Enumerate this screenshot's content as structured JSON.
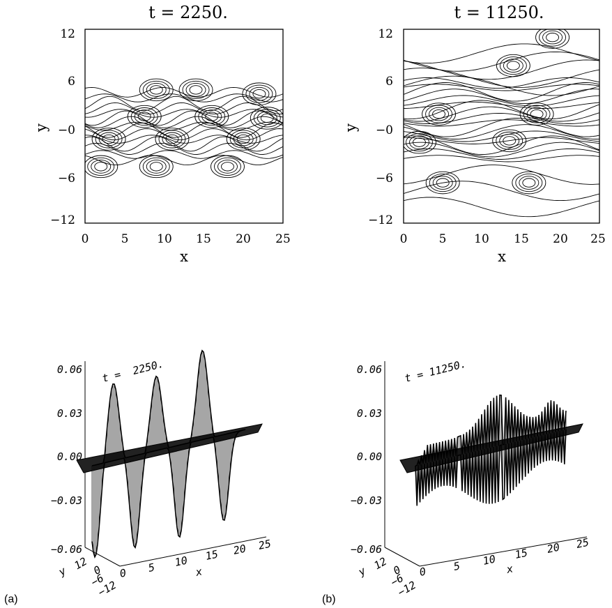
{
  "figure": {
    "label_a": "(a)",
    "label_b": "(b)"
  },
  "chart_data": [
    {
      "type": "contour",
      "title": "t =  2250.",
      "xlabel": "x",
      "ylabel": "y",
      "xlim": [
        0,
        25
      ],
      "ylim": [
        -12,
        12
      ],
      "xticks": [
        "0",
        "5",
        "10",
        "15",
        "20",
        "25"
      ],
      "yticks": [
        "12",
        "6",
        "−0",
        "−6",
        "−12"
      ],
      "ytick_values": [
        12,
        6,
        0,
        -6,
        -12
      ],
      "xtick_values": [
        0,
        5,
        10,
        15,
        20,
        25
      ],
      "peaks": [
        {
          "x": 7.5,
          "y": 1.2
        },
        {
          "x": 16,
          "y": 1.2
        },
        {
          "x": 23,
          "y": 1.0
        },
        {
          "x": 3,
          "y": -1.6
        },
        {
          "x": 11,
          "y": -1.6
        },
        {
          "x": 20,
          "y": -1.6
        },
        {
          "x": 2,
          "y": -5
        },
        {
          "x": 9,
          "y": -5
        },
        {
          "x": 18,
          "y": -5
        },
        {
          "x": 9,
          "y": 4.5
        },
        {
          "x": 14,
          "y": 4.5
        },
        {
          "x": 22,
          "y": 4
        }
      ]
    },
    {
      "type": "contour",
      "title": "t = 11250.",
      "xlabel": "x",
      "ylabel": "y",
      "xlim": [
        0,
        25
      ],
      "ylim": [
        -12,
        12
      ],
      "xticks": [
        "0",
        "5",
        "10",
        "15",
        "20",
        "25"
      ],
      "yticks": [
        "12",
        "6",
        "−0",
        "−6",
        "−12"
      ],
      "ytick_values": [
        12,
        6,
        0,
        -6,
        -12
      ],
      "xtick_values": [
        0,
        5,
        10,
        15,
        20,
        25
      ],
      "peaks": [
        {
          "x": 13.5,
          "y": -1.8
        },
        {
          "x": 4.5,
          "y": 1.5
        },
        {
          "x": 17,
          "y": 1.5
        },
        {
          "x": 2,
          "y": -2
        },
        {
          "x": 5,
          "y": -7
        },
        {
          "x": 16,
          "y": -7
        },
        {
          "x": 14,
          "y": 7.5
        },
        {
          "x": 19,
          "y": 11
        }
      ]
    },
    {
      "type": "surface",
      "title": "t =  2250.",
      "xlabel": "x",
      "ylabel": "y",
      "xlim": [
        0,
        25
      ],
      "ylim": [
        -12,
        12
      ],
      "zlim": [
        -0.06,
        0.06
      ],
      "zticks": [
        "0.06",
        "0.03",
        "0.00",
        "−0.03",
        "−0.06"
      ],
      "xticks": [
        "0",
        "5",
        "10",
        "15",
        "20",
        "25"
      ],
      "yticks": [
        "12",
        "6",
        "0",
        "−6",
        "−12"
      ],
      "z_max": 0.06,
      "z_min": -0.06
    },
    {
      "type": "surface",
      "title": "t = 11250.",
      "xlabel": "x",
      "ylabel": "y",
      "xlim": [
        0,
        25
      ],
      "ylim": [
        -12,
        12
      ],
      "zlim": [
        -0.06,
        0.06
      ],
      "zticks": [
        "0.06",
        "0.03",
        "0.00",
        "−0.03",
        "−0.06"
      ],
      "xticks": [
        "0",
        "5",
        "10",
        "15",
        "20",
        "25"
      ],
      "yticks": [
        "12",
        "6",
        "0",
        "−6",
        "−12"
      ],
      "z_max": 0.035,
      "z_min": -0.03
    }
  ]
}
